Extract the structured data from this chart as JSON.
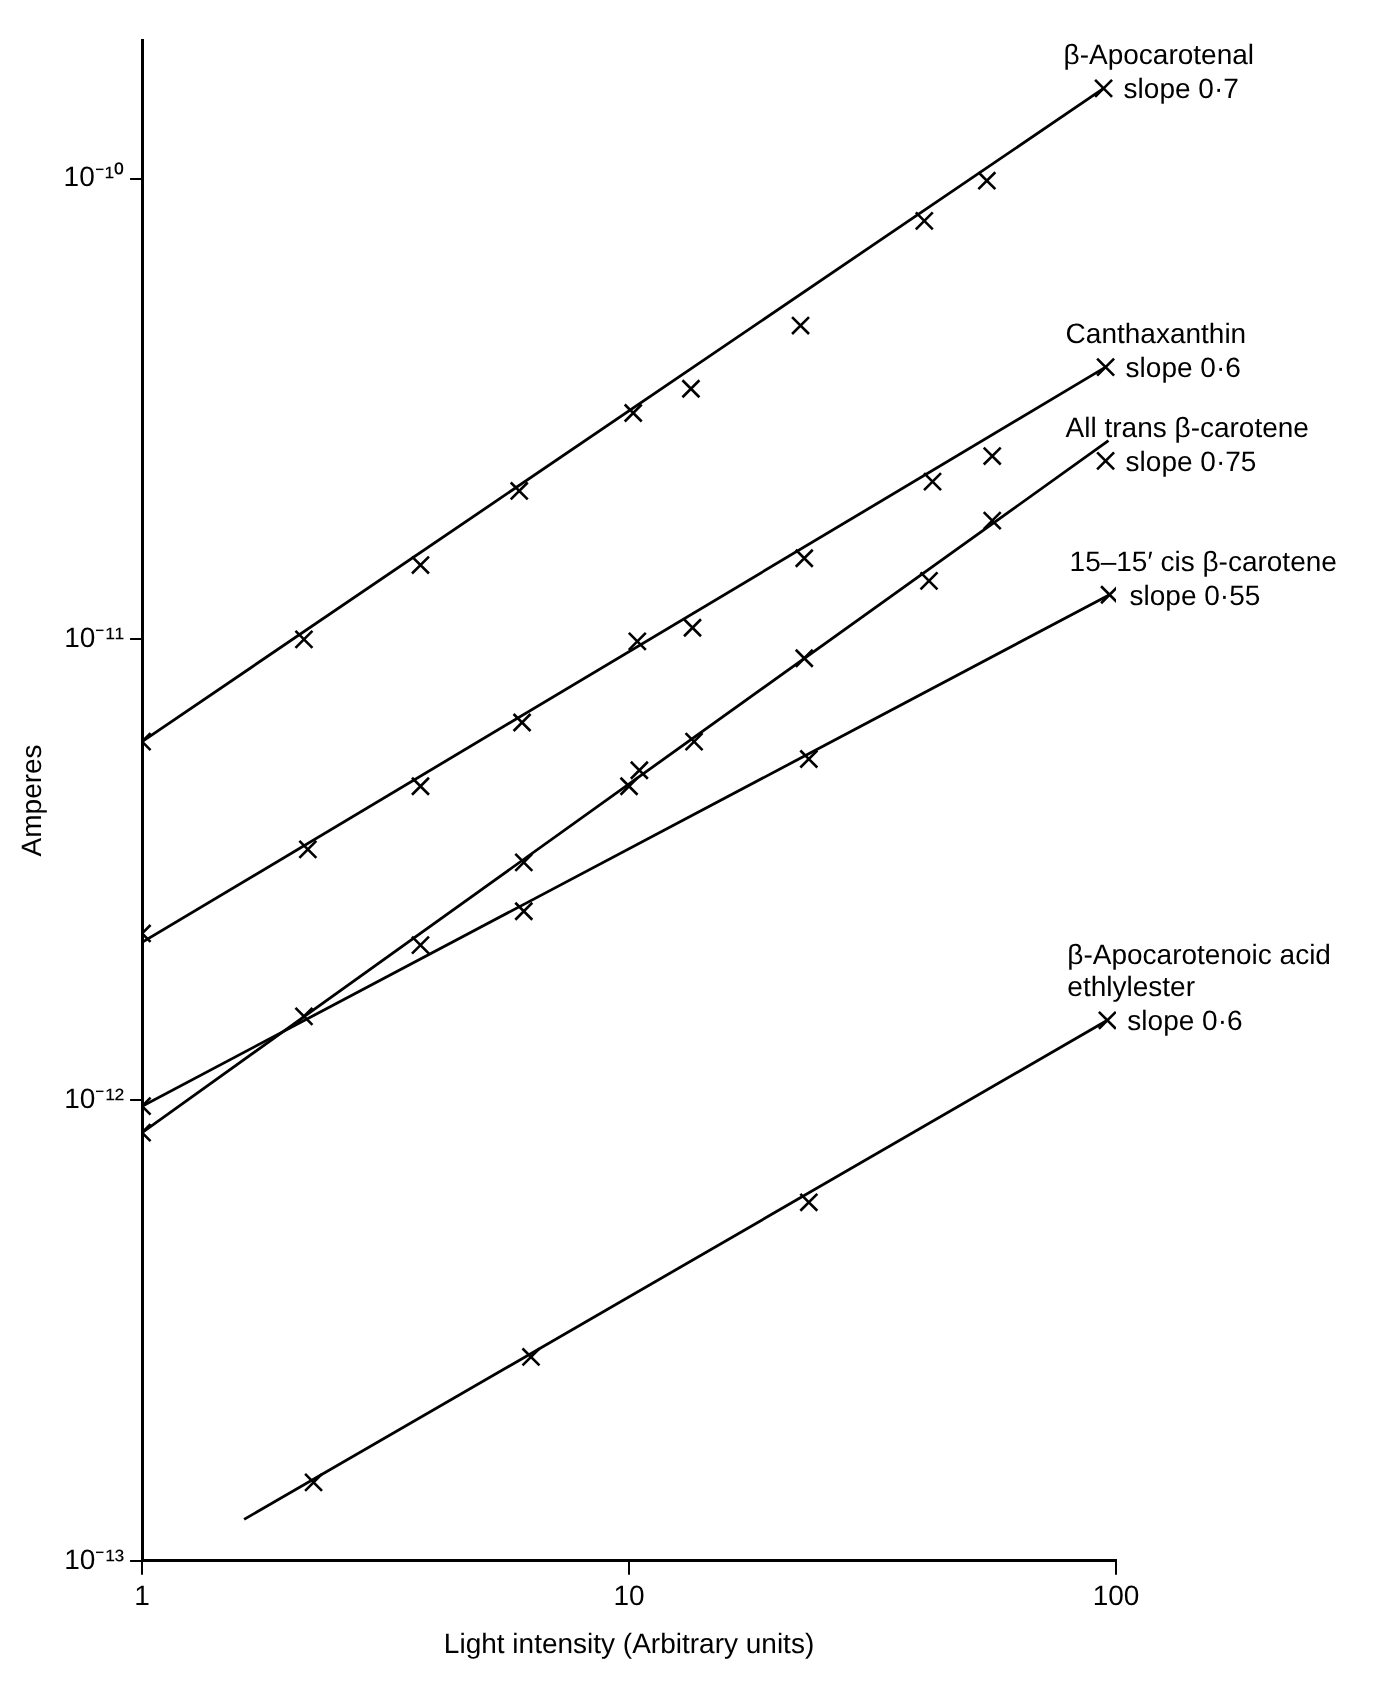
{
  "chart_data": {
    "type": "scatter",
    "xlabel": "Light intensity (Arbitrary units)",
    "ylabel": "Amperes",
    "log": "xy",
    "grid": false,
    "legend": false,
    "marker": "cross",
    "xlim": [
      1,
      100
    ],
    "xticks": [
      1,
      10,
      100
    ],
    "ylim": [
      1e-13,
      2e-10
    ],
    "yticks": [
      {
        "value": 1e-13,
        "label": "10⁻¹³"
      },
      {
        "value": 1e-12,
        "label": "10⁻¹²"
      },
      {
        "value": 1e-11,
        "label": "10⁻¹¹"
      },
      {
        "value": 1e-10,
        "label": "10⁻¹⁰"
      }
    ],
    "series": [
      {
        "name": "β-Apocarotenal",
        "color": "#000000",
        "x": [
          1,
          2.15,
          3.73,
          5.95,
          10.2,
          13.4,
          22.5,
          40.4,
          54.3,
          94.3
        ],
        "values": [
          6e-12,
          1e-11,
          1.45e-11,
          2.1e-11,
          3.1e-11,
          3.5e-11,
          4.8e-11,
          8.1e-11,
          9.9e-11,
          1.57e-10
        ]
      },
      {
        "name": "Canthaxanthin",
        "color": "#000000",
        "x": [
          1,
          2.19,
          3.73,
          6.03,
          10.4,
          13.5,
          22.9,
          42,
          55.7,
          95.2
        ],
        "values": [
          2.3e-12,
          3.5e-12,
          4.8e-12,
          6.6e-12,
          9.9e-12,
          1.06e-11,
          1.5e-11,
          2.2e-11,
          2.5e-11,
          3.9e-11
        ]
      },
      {
        "name": "All trans β-carotene",
        "color": "#000000",
        "x": [
          1,
          2.15,
          3.73,
          6.08,
          10,
          10.5,
          13.6,
          22.9,
          41.3,
          55.7,
          95.2
        ],
        "values": [
          8.5e-13,
          1.52e-12,
          2.17e-12,
          3.28e-12,
          4.8e-12,
          5.2e-12,
          6e-12,
          9.1e-12,
          1.34e-11,
          1.81e-11,
          2.44e-11
        ]
      },
      {
        "name": "15–15′ cis β-carotene",
        "color": "#000000",
        "x": [
          1,
          6.08,
          23.4,
          97
        ],
        "values": [
          9.7e-13,
          2.57e-12,
          5.5e-12,
          1.25e-11
        ]
      },
      {
        "name": "β-Apocarotenoic acid ethlylester",
        "color": "#000000",
        "x": [
          2.25,
          6.29,
          23.4,
          96
        ],
        "values": [
          1.48e-13,
          2.77e-13,
          6e-13,
          1.49e-12
        ]
      },
      {
        "type": "line",
        "marker": "none",
        "color": "#000000",
        "x": [
          1,
          94.3
        ],
        "values": [
          6e-12,
          1.57e-10
        ]
      },
      {
        "type": "line",
        "marker": "none",
        "color": "#000000",
        "x": [
          1,
          95.2
        ],
        "values": [
          2.2e-12,
          3.9e-11
        ]
      },
      {
        "type": "line",
        "marker": "none",
        "color": "#000000",
        "x": [
          1,
          96.5
        ],
        "values": [
          8.5e-13,
          2.7e-11
        ]
      },
      {
        "type": "line",
        "marker": "none",
        "color": "#000000",
        "x": [
          1,
          97
        ],
        "values": [
          9.7e-13,
          1.25e-11
        ]
      },
      {
        "type": "line",
        "marker": "none",
        "color": "#000000",
        "x": [
          1.62,
          96
        ],
        "values": [
          1.23e-13,
          1.49e-12
        ]
      }
    ],
    "annotations": [
      {
        "text": "slope 0·7",
        "x": 94.3,
        "y": 1.57e-10
      },
      {
        "text": "slope 0·6",
        "x": 95.2,
        "y": 3.9e-11
      },
      {
        "text": "slope 0·75",
        "x": 95.2,
        "y": 2.44e-11
      },
      {
        "text": "slope 0·55",
        "x": 97,
        "y": 1.25e-11
      },
      {
        "text": "slope 0·6",
        "x": 96,
        "y": 1.49e-12
      }
    ]
  }
}
